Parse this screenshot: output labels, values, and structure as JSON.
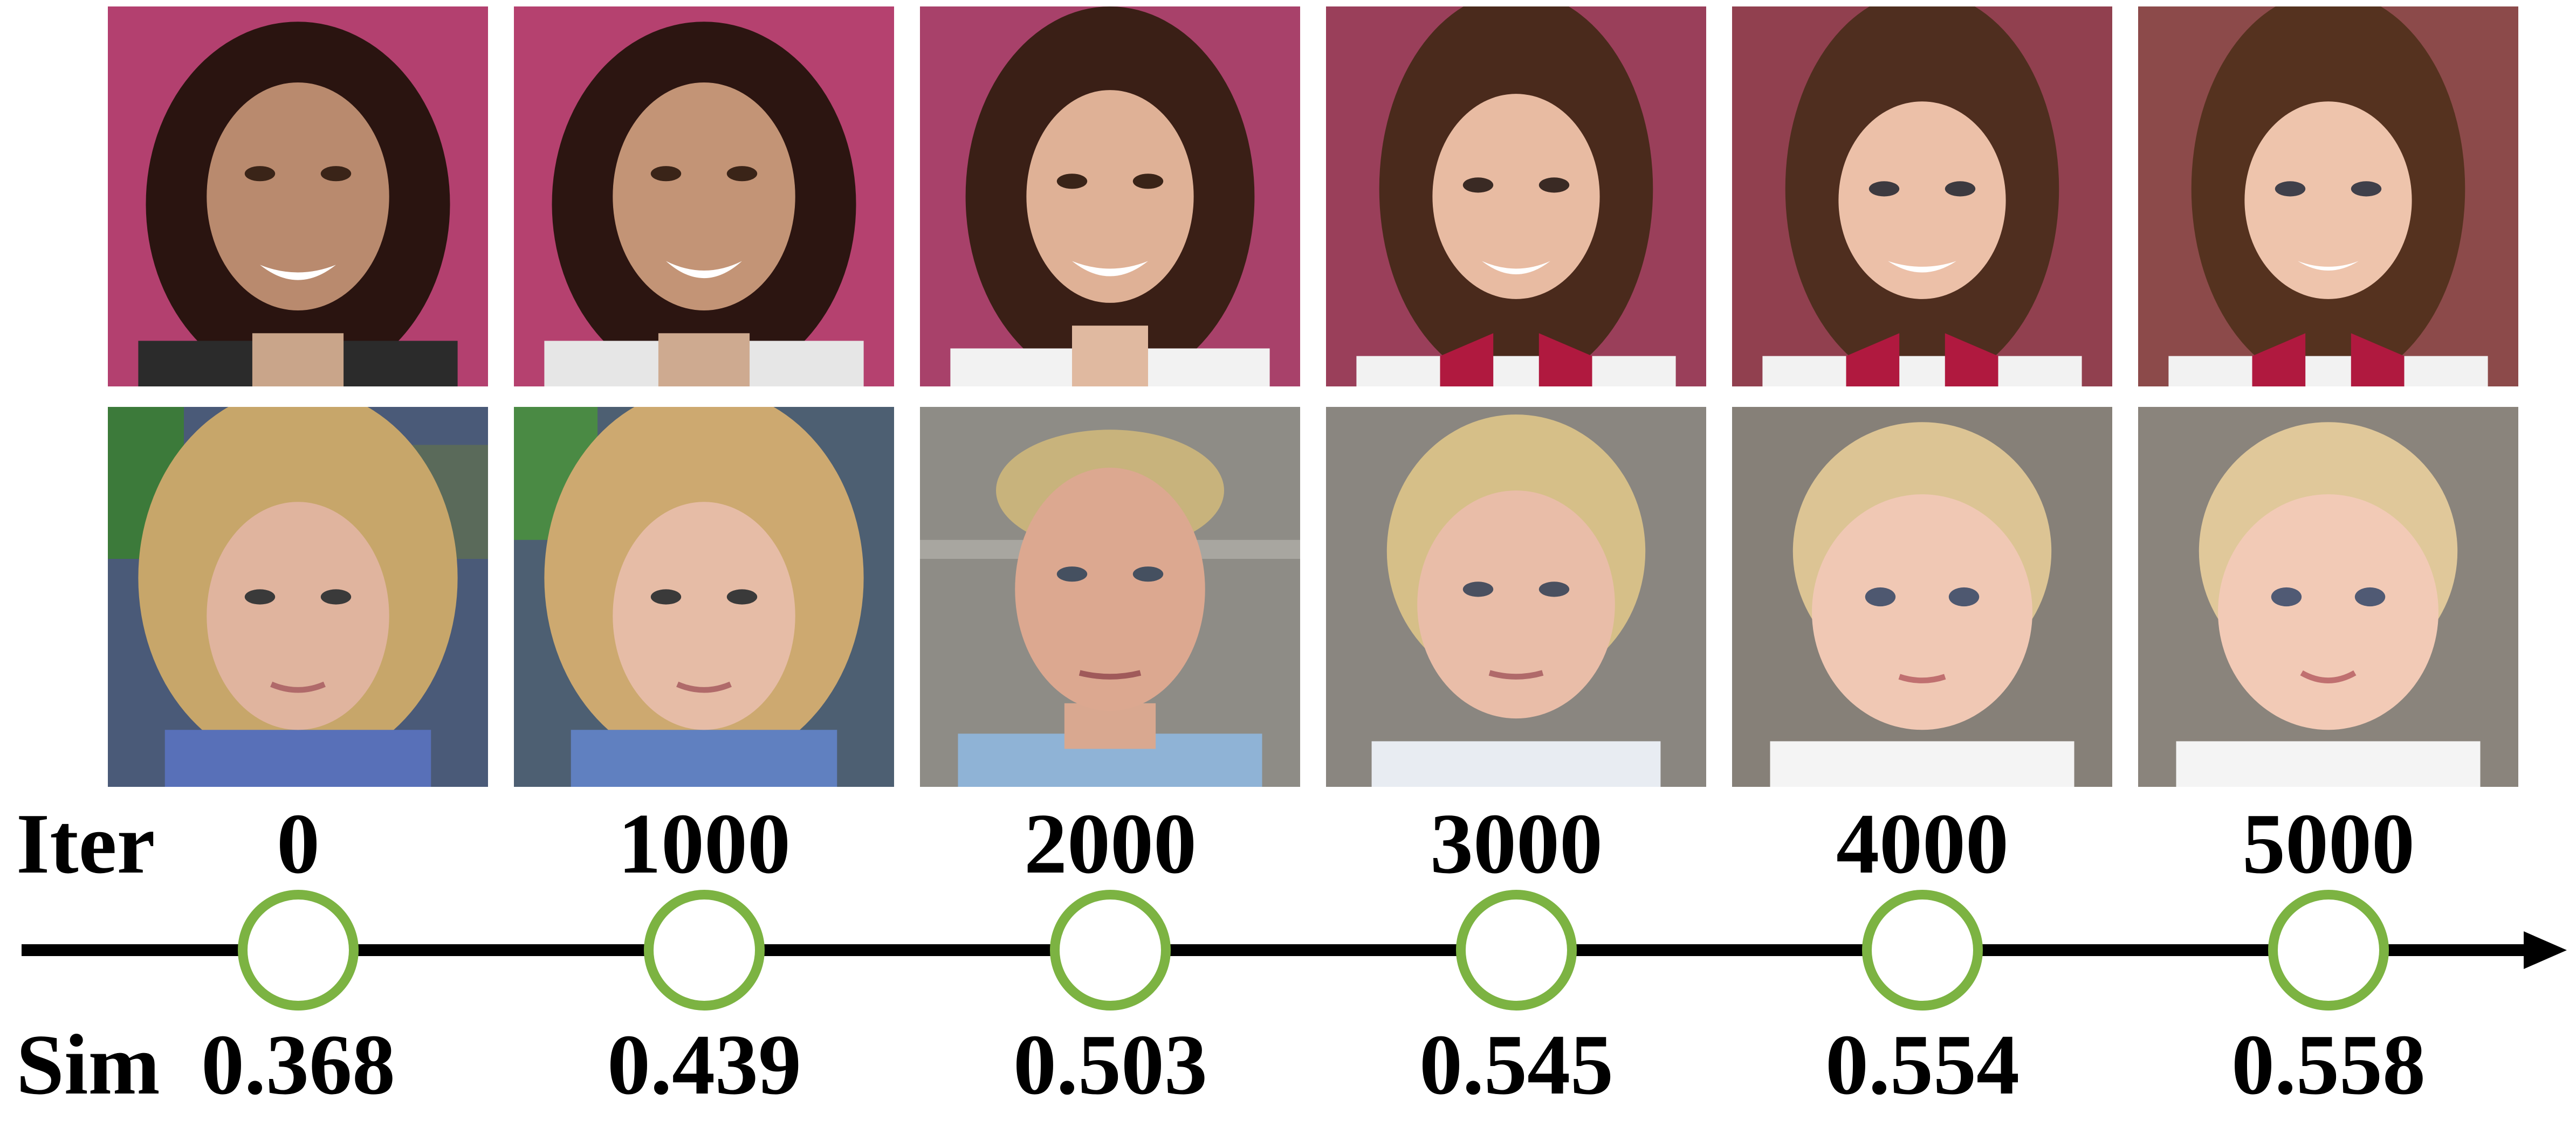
{
  "columns": [
    {
      "iter": "0",
      "sim": "0.368"
    },
    {
      "iter": "1000",
      "sim": "0.439"
    },
    {
      "iter": "2000",
      "sim": "0.503"
    },
    {
      "iter": "3000",
      "sim": "0.545"
    },
    {
      "iter": "4000",
      "sim": "0.554"
    },
    {
      "iter": "5000",
      "sim": "0.558"
    }
  ],
  "labels": {
    "iter": "Iter",
    "sim": "Sim"
  },
  "colors": {
    "marker": "#7cb342",
    "axis": "#000000",
    "text": "#000000"
  }
}
